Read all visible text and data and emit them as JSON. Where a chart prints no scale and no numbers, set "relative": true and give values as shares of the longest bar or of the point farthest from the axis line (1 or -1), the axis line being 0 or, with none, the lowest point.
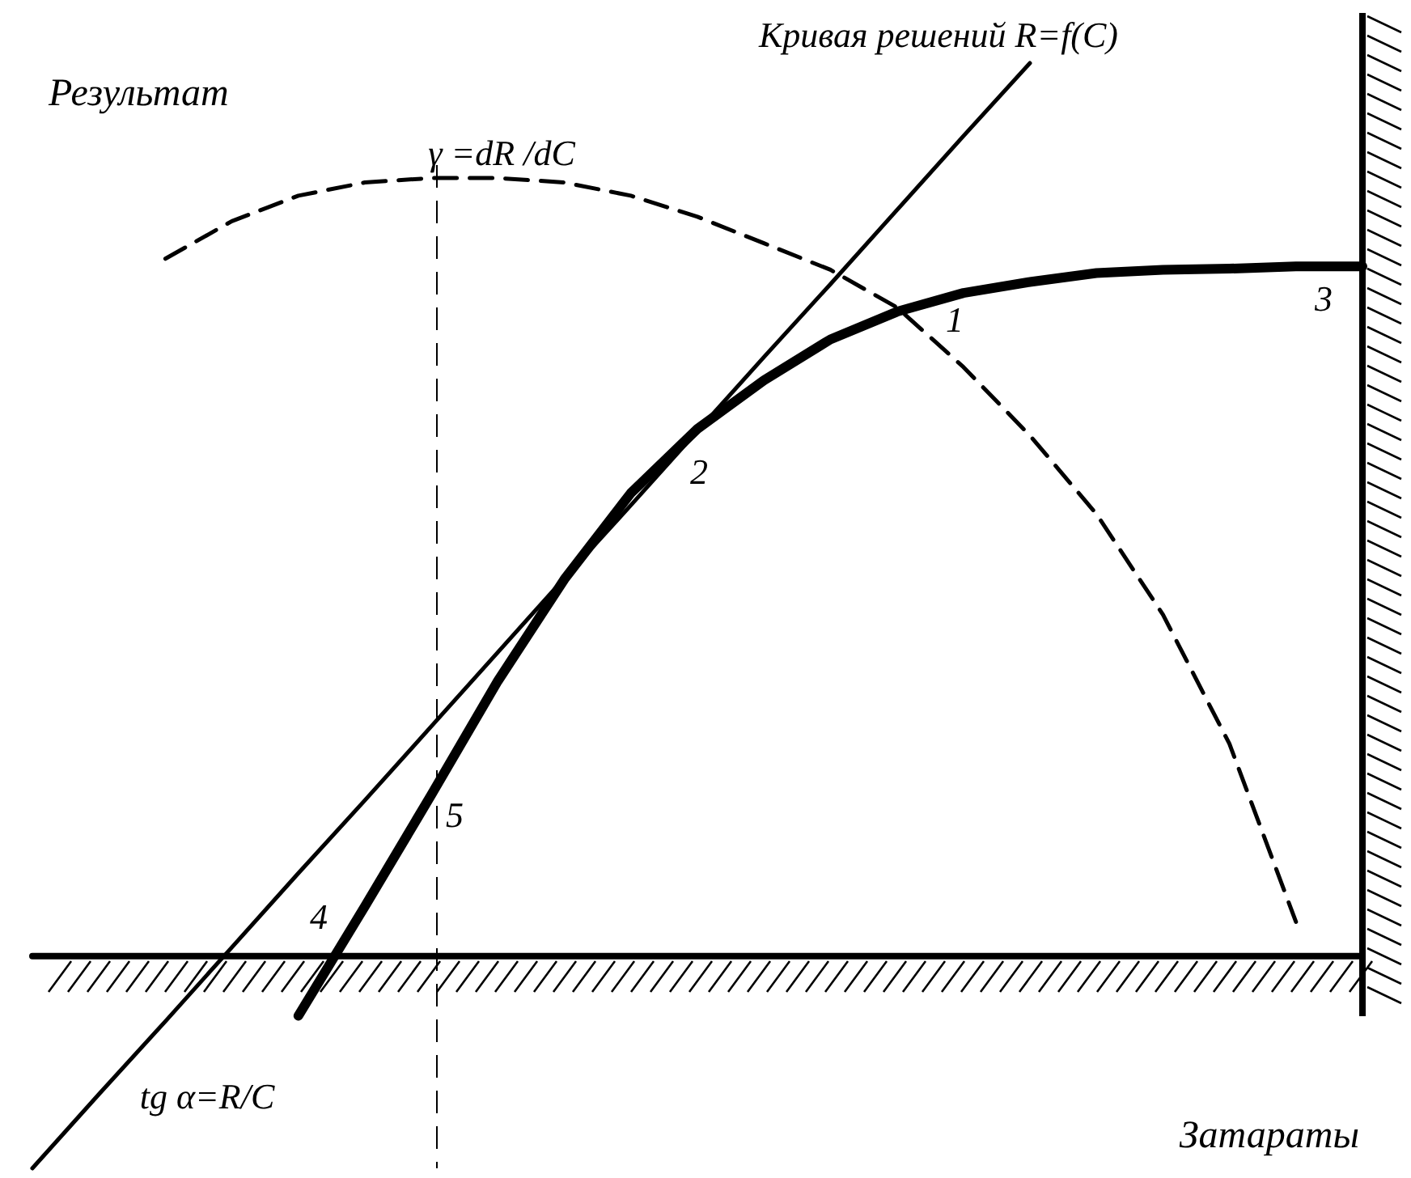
{
  "chart_data": {
    "type": "line",
    "relative": true,
    "xlabel": "Затараты",
    "ylabel": "Результат",
    "categories": [
      null,
      null,
      null,
      null,
      null,
      null,
      null,
      null,
      null,
      null,
      null,
      null,
      null,
      null,
      null,
      null,
      null,
      null,
      null,
      null,
      null
    ],
    "series": [
      {
        "color": "#000000",
        "line_style": "solid",
        "values": [
          null,
          null,
          null,
          null,
          0.138,
          0.237,
          0.338,
          0.441,
          0.533,
          0.611,
          0.669,
          0.713,
          0.75,
          0.775,
          0.792,
          0.802,
          0.81,
          0.813,
          0.814,
          0.816,
          0.816
        ]
      },
      {
        "color": "#000000",
        "line_style": "solid",
        "values": [
          0,
          0.067,
          0.133,
          0.2,
          0.267,
          0.333,
          0.4,
          0.467,
          0.534,
          0.6,
          0.667,
          0.734,
          0.8,
          0.867,
          0.934,
          1.0,
          null,
          null,
          null,
          null,
          null
        ]
      },
      {
        "color": "#000000",
        "line_style": "dashed",
        "values": [
          null,
          null,
          0.823,
          0.857,
          0.88,
          0.892,
          0.896,
          0.896,
          0.892,
          0.88,
          0.861,
          0.837,
          0.813,
          0.779,
          0.725,
          0.663,
          0.592,
          0.501,
          0.384,
          0.223,
          null
        ]
      },
      {
        "color": "#000000",
        "line_style": "solid",
        "values": [
          0.192,
          0.192,
          0.192,
          0.192,
          0.192,
          0.192,
          0.192,
          0.192,
          0.192,
          0.192,
          0.192,
          0.192,
          0.192,
          0.192,
          0.192,
          0.192,
          0.192,
          0.192,
          0.192,
          0.192,
          0.192
        ]
      }
    ],
    "annotations": [
      "Кривая решений R=f(C)",
      "γ =dR /dC",
      "tg α=R/C",
      "1",
      "2",
      "3",
      "4",
      "5"
    ]
  }
}
